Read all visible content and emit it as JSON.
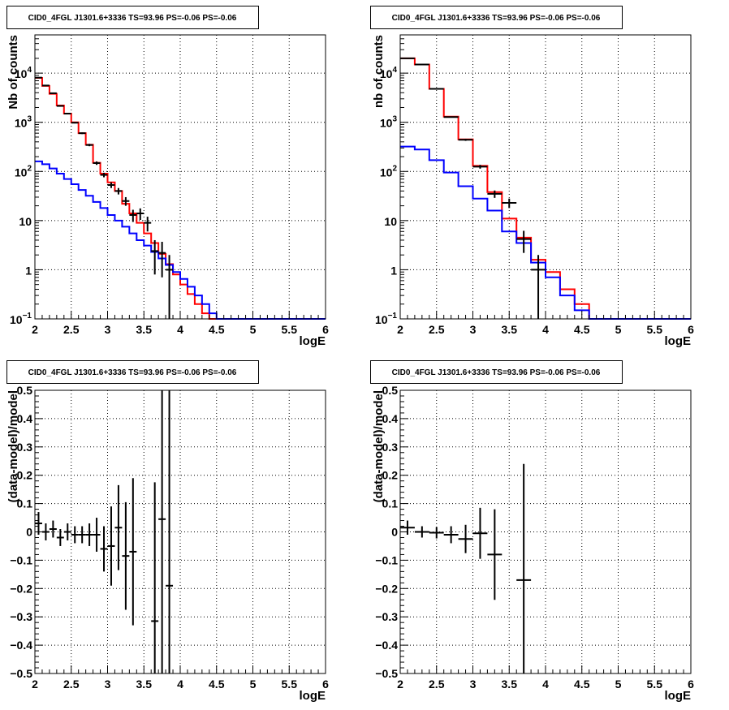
{
  "chart_data": [
    {
      "type": "line",
      "title": "CID0_4FGL J1301.6+3336 TS=93.96 PS=-0.06 PS=-0.06",
      "xlabel": "logE",
      "ylabel": "Nb of counts",
      "xlim": [
        2,
        6
      ],
      "ylim": [
        0.1,
        60000
      ],
      "yscale": "log",
      "grid": true,
      "xticks": [
        "2",
        "2.5",
        "3",
        "3.5",
        "4",
        "4.5",
        "5",
        "5.5",
        "6"
      ],
      "yticks": [
        {
          "value": 0.1,
          "base": "10",
          "exp": "−1"
        },
        {
          "value": 1,
          "base": "1",
          "exp": ""
        },
        {
          "value": 10,
          "base": "10",
          "exp": ""
        },
        {
          "value": 100,
          "base": "10",
          "exp": "2"
        },
        {
          "value": 1000,
          "base": "10",
          "exp": "3"
        },
        {
          "value": 10000,
          "base": "10",
          "exp": "4"
        }
      ],
      "series": [
        {
          "role": "total",
          "color": "#ff0000",
          "binwidth": 0.1,
          "edges": [
            2.0,
            2.1,
            2.2,
            2.3,
            2.4,
            2.5,
            2.6,
            2.7,
            2.8,
            2.9,
            3.0,
            3.1,
            3.2,
            3.3,
            3.4,
            3.5,
            3.6,
            3.7,
            3.8,
            3.9,
            4.0,
            4.1,
            4.2,
            4.3,
            4.4,
            4.5,
            4.6,
            4.7,
            4.8,
            4.9,
            5.0,
            5.1,
            5.2,
            5.3,
            5.4,
            5.5,
            5.6,
            5.7,
            5.8,
            5.9,
            6.0
          ],
          "values": [
            8000,
            5500,
            3800,
            2200,
            1500,
            1000,
            600,
            350,
            150,
            90,
            60,
            40,
            22,
            14,
            9,
            5.5,
            3.5,
            2.1,
            1.3,
            0.8,
            0.5,
            0.32,
            0.2,
            0.13,
            0.1,
            0.1,
            0.1,
            0.1,
            0.1,
            0.1,
            0.1,
            0.1,
            0.1,
            0.1,
            0.1,
            0.1,
            0.1,
            0.1,
            0.1,
            0.1
          ]
        },
        {
          "role": "component",
          "color": "#0000ff",
          "binwidth": 0.1,
          "edges": [
            2.0,
            2.1,
            2.2,
            2.3,
            2.4,
            2.5,
            2.6,
            2.7,
            2.8,
            2.9,
            3.0,
            3.1,
            3.2,
            3.3,
            3.4,
            3.5,
            3.6,
            3.7,
            3.8,
            3.9,
            4.0,
            4.1,
            4.2,
            4.3,
            4.4,
            4.5,
            4.6,
            4.7,
            4.8,
            4.9,
            5.0,
            5.1,
            5.2,
            5.3,
            5.4,
            5.5,
            5.6,
            5.7,
            5.8,
            5.9,
            6.0
          ],
          "values": [
            160,
            140,
            115,
            90,
            70,
            55,
            42,
            32,
            24,
            18,
            13,
            10,
            7.5,
            5.5,
            4,
            3.1,
            2.3,
            1.7,
            1.25,
            0.9,
            0.65,
            0.45,
            0.3,
            0.2,
            0.13,
            0.1,
            0.1,
            0.1,
            0.1,
            0.1,
            0.1,
            0.1,
            0.1,
            0.1,
            0.1,
            0.1,
            0.1,
            0.1,
            0.1,
            0.1
          ]
        }
      ],
      "points": [
        {
          "x": 2.05,
          "y": 8100,
          "yerr": 90
        },
        {
          "x": 2.15,
          "y": 5600,
          "yerr": 75
        },
        {
          "x": 2.25,
          "y": 3900,
          "yerr": 62
        },
        {
          "x": 2.35,
          "y": 2150,
          "yerr": 46
        },
        {
          "x": 2.45,
          "y": 1500,
          "yerr": 39
        },
        {
          "x": 2.55,
          "y": 980,
          "yerr": 31
        },
        {
          "x": 2.65,
          "y": 600,
          "yerr": 24
        },
        {
          "x": 2.75,
          "y": 345,
          "yerr": 19
        },
        {
          "x": 2.85,
          "y": 148,
          "yerr": 12
        },
        {
          "x": 2.95,
          "y": 85,
          "yerr": 9
        },
        {
          "x": 3.05,
          "y": 53,
          "yerr": 7
        },
        {
          "x": 3.15,
          "y": 40,
          "yerr": 6
        },
        {
          "x": 3.25,
          "y": 25,
          "yerr": 5
        },
        {
          "x": 3.35,
          "y": 13,
          "yerr": 3.6
        },
        {
          "x": 3.45,
          "y": 14,
          "yerr": 3.7
        },
        {
          "x": 3.55,
          "y": 9,
          "yerr": 3
        },
        {
          "x": 3.65,
          "y": 2.4,
          "yerr": 1.6
        },
        {
          "x": 3.75,
          "y": 2.2,
          "yerr": 1.5
        },
        {
          "x": 3.85,
          "y": 1,
          "yerr": 1
        }
      ]
    },
    {
      "type": "line",
      "title": "CID0_4FGL J1301.6+3336 TS=93.96 PS=-0.06 PS=-0.06",
      "xlabel": "logE",
      "ylabel": "nb of counts",
      "xlim": [
        2,
        6
      ],
      "ylim": [
        0.1,
        60000
      ],
      "yscale": "log",
      "grid": true,
      "xticks": [
        "2",
        "2.5",
        "3",
        "3.5",
        "4",
        "4.5",
        "5",
        "5.5",
        "6"
      ],
      "yticks": [
        {
          "value": 0.1,
          "base": "10",
          "exp": "−1"
        },
        {
          "value": 1,
          "base": "1",
          "exp": ""
        },
        {
          "value": 10,
          "base": "10",
          "exp": ""
        },
        {
          "value": 100,
          "base": "10",
          "exp": "2"
        },
        {
          "value": 1000,
          "base": "10",
          "exp": "3"
        },
        {
          "value": 10000,
          "base": "10",
          "exp": "4"
        }
      ],
      "series": [
        {
          "role": "total",
          "color": "#ff0000",
          "binwidth": 0.2,
          "edges": [
            2.0,
            2.2,
            2.4,
            2.6,
            2.8,
            3.0,
            3.2,
            3.4,
            3.6,
            3.8,
            4.0,
            4.2,
            4.4,
            4.6,
            4.8,
            5.0,
            5.2,
            5.4,
            5.6,
            5.8,
            6.0
          ],
          "values": [
            20000,
            15000,
            4800,
            1300,
            450,
            130,
            38,
            11,
            4.5,
            1.6,
            0.9,
            0.4,
            0.2,
            0.1,
            0.1,
            0.1,
            0.1,
            0.1,
            0.1,
            0.1
          ]
        },
        {
          "role": "component",
          "color": "#0000ff",
          "binwidth": 0.2,
          "edges": [
            2.0,
            2.2,
            2.4,
            2.6,
            2.8,
            3.0,
            3.2,
            3.4,
            3.6,
            3.8,
            4.0,
            4.2,
            4.4,
            4.6,
            4.8,
            5.0,
            5.2,
            5.4,
            5.6,
            5.8,
            6.0
          ],
          "values": [
            320,
            280,
            170,
            95,
            50,
            28,
            16,
            6,
            3.5,
            1.4,
            0.7,
            0.3,
            0.15,
            0.1,
            0.1,
            0.1,
            0.1,
            0.1,
            0.1,
            0.1
          ]
        }
      ],
      "points": [
        {
          "x": 2.1,
          "y": 20000,
          "yerr": 140
        },
        {
          "x": 2.3,
          "y": 15000,
          "yerr": 120
        },
        {
          "x": 2.5,
          "y": 4800,
          "yerr": 70
        },
        {
          "x": 2.7,
          "y": 1280,
          "yerr": 36
        },
        {
          "x": 2.9,
          "y": 440,
          "yerr": 21
        },
        {
          "x": 3.1,
          "y": 125,
          "yerr": 11
        },
        {
          "x": 3.3,
          "y": 35,
          "yerr": 6
        },
        {
          "x": 3.5,
          "y": 23,
          "yerr": 5
        },
        {
          "x": 3.7,
          "y": 4.2,
          "yerr": 2
        },
        {
          "x": 3.9,
          "y": 1,
          "yerr": 1
        }
      ]
    },
    {
      "type": "scatter",
      "title": "CID0_4FGL J1301.6+3336 TS=93.96 PS=-0.06 PS=-0.06",
      "xlabel": "logE",
      "ylabel": "(data-model)/model",
      "xlim": [
        2,
        6
      ],
      "ylim": [
        -0.5,
        0.5
      ],
      "grid": true,
      "xticks": [
        "2",
        "2.5",
        "3",
        "3.5",
        "4",
        "4.5",
        "5",
        "5.5",
        "6"
      ],
      "yticks": [
        "−0.5",
        "−0.4",
        "−0.3",
        "−0.2",
        "−0.1",
        "0",
        "0.1",
        "0.2",
        "0.3",
        "0.4",
        "0.5"
      ],
      "ytick_values": [
        -0.5,
        -0.4,
        -0.3,
        -0.2,
        -0.1,
        0,
        0.1,
        0.2,
        0.3,
        0.4,
        0.5
      ],
      "xerr": 0.05,
      "points": [
        {
          "x": 2.05,
          "y": 0.03,
          "yerr": 0.04
        },
        {
          "x": 2.15,
          "y": 0.0,
          "yerr": 0.03
        },
        {
          "x": 2.25,
          "y": 0.01,
          "yerr": 0.03
        },
        {
          "x": 2.35,
          "y": -0.02,
          "yerr": 0.03
        },
        {
          "x": 2.45,
          "y": 0.0,
          "yerr": 0.03
        },
        {
          "x": 2.55,
          "y": -0.01,
          "yerr": 0.03
        },
        {
          "x": 2.65,
          "y": -0.01,
          "yerr": 0.03
        },
        {
          "x": 2.75,
          "y": -0.01,
          "yerr": 0.04
        },
        {
          "x": 2.85,
          "y": -0.01,
          "yerr": 0.06
        },
        {
          "x": 2.95,
          "y": -0.06,
          "yerr": 0.08
        },
        {
          "x": 3.05,
          "y": -0.05,
          "yerr": 0.14
        },
        {
          "x": 3.15,
          "y": 0.015,
          "yerr": 0.15
        },
        {
          "x": 3.25,
          "y": -0.085,
          "yerr": 0.19
        },
        {
          "x": 3.35,
          "y": -0.07,
          "yerr": 0.26
        },
        {
          "x": 3.65,
          "y": -0.315,
          "yerr": 0.49
        },
        {
          "x": 3.75,
          "y": 0.045,
          "yerr": 0.6
        },
        {
          "x": 3.85,
          "y": -0.19,
          "yerr": 0.8
        }
      ]
    },
    {
      "type": "scatter",
      "title": "CID0_4FGL J1301.6+3336 TS=93.96 PS=-0.06 PS=-0.06",
      "xlabel": "logE",
      "ylabel": "(data-model)/model",
      "xlim": [
        2,
        6
      ],
      "ylim": [
        -0.5,
        0.5
      ],
      "grid": true,
      "xticks": [
        "2",
        "2.5",
        "3",
        "3.5",
        "4",
        "4.5",
        "5",
        "5.5",
        "6"
      ],
      "yticks": [
        "−0.5",
        "−0.4",
        "−0.3",
        "−0.2",
        "−0.1",
        "0",
        "0.1",
        "0.2",
        "0.3",
        "0.4",
        "0.5"
      ],
      "ytick_values": [
        -0.5,
        -0.4,
        -0.3,
        -0.2,
        -0.1,
        0,
        0.1,
        0.2,
        0.3,
        0.4,
        0.5
      ],
      "xerr": 0.1,
      "points": [
        {
          "x": 2.1,
          "y": 0.015,
          "yerr": 0.025
        },
        {
          "x": 2.3,
          "y": 0.0,
          "yerr": 0.02
        },
        {
          "x": 2.5,
          "y": -0.003,
          "yerr": 0.02
        },
        {
          "x": 2.7,
          "y": -0.01,
          "yerr": 0.03
        },
        {
          "x": 2.9,
          "y": -0.025,
          "yerr": 0.05
        },
        {
          "x": 3.1,
          "y": -0.005,
          "yerr": 0.09
        },
        {
          "x": 3.3,
          "y": -0.08,
          "yerr": 0.16
        },
        {
          "x": 3.7,
          "y": -0.17,
          "yerr": 0.41
        }
      ]
    }
  ]
}
